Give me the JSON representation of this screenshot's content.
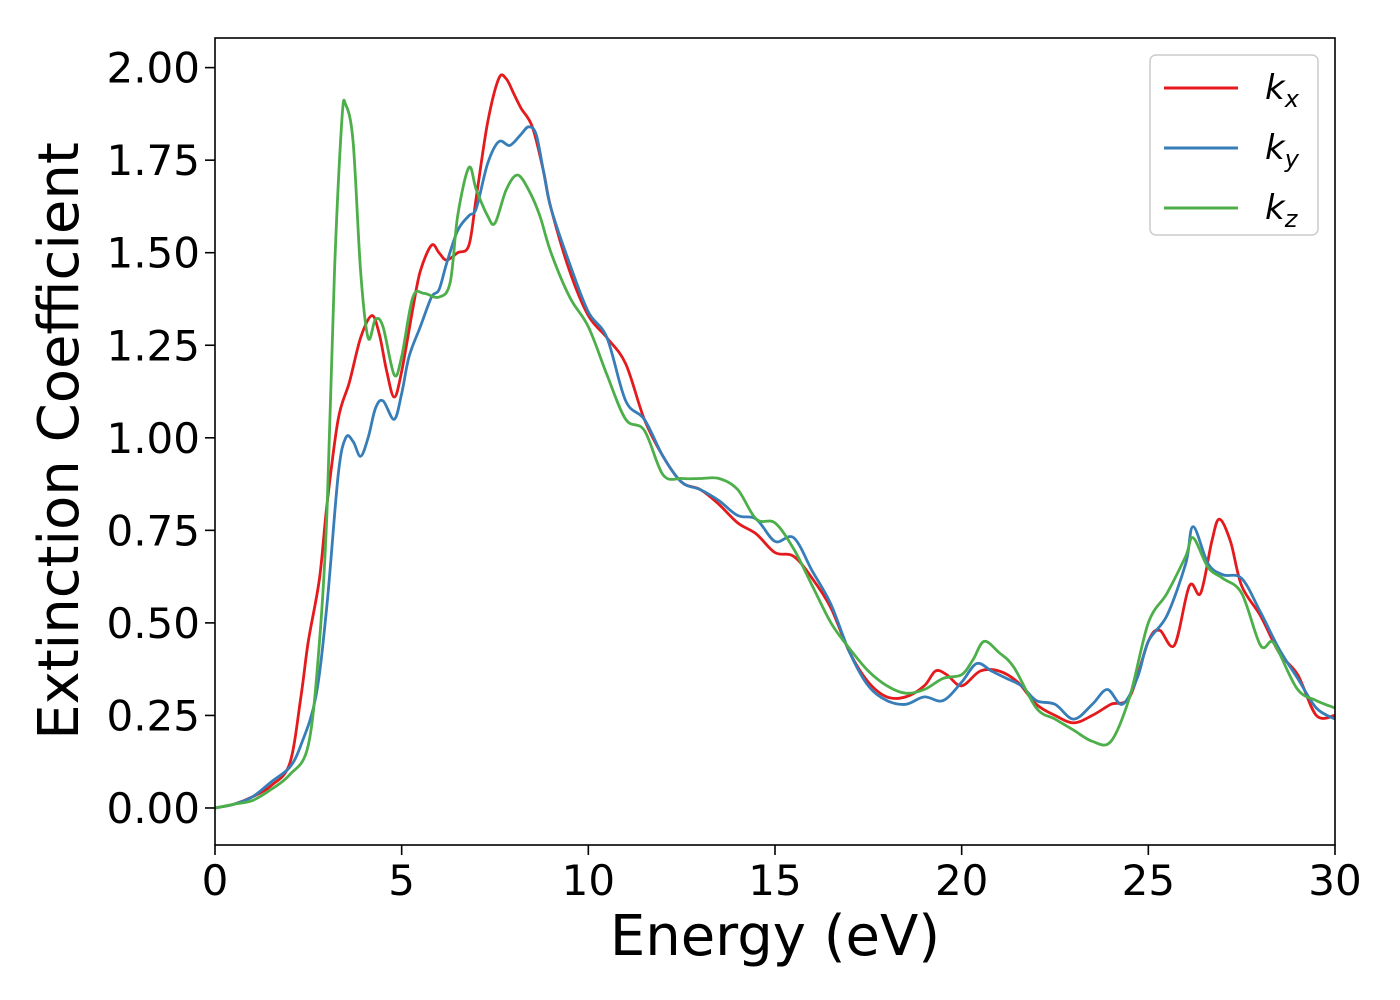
{
  "chart_data": {
    "type": "line",
    "xlabel": "Energy (eV)",
    "ylabel": "Extinction Coefficient",
    "xlim": [
      0,
      30
    ],
    "ylim": [
      -0.1,
      2.08
    ],
    "x_ticks": [
      "0",
      "5",
      "10",
      "15",
      "20",
      "25",
      "30"
    ],
    "y_ticks": [
      "0.00",
      "0.25",
      "0.50",
      "0.75",
      "1.00",
      "1.25",
      "1.50",
      "1.75",
      "2.00"
    ],
    "grid": false,
    "legend_position": "top-right",
    "series": [
      {
        "name": "k",
        "subscript": "x",
        "color": "#e41a1c",
        "points": [
          [
            0,
            0
          ],
          [
            0.5,
            0.01
          ],
          [
            1,
            0.03
          ],
          [
            1.5,
            0.06
          ],
          [
            2,
            0.12
          ],
          [
            2.3,
            0.3
          ],
          [
            2.5,
            0.45
          ],
          [
            2.8,
            0.62
          ],
          [
            3,
            0.82
          ],
          [
            3.3,
            1.05
          ],
          [
            3.6,
            1.15
          ],
          [
            3.9,
            1.27
          ],
          [
            4.2,
            1.33
          ],
          [
            4.4,
            1.28
          ],
          [
            4.6,
            1.18
          ],
          [
            4.8,
            1.11
          ],
          [
            5,
            1.18
          ],
          [
            5.3,
            1.35
          ],
          [
            5.5,
            1.45
          ],
          [
            5.8,
            1.52
          ],
          [
            6,
            1.5
          ],
          [
            6.2,
            1.48
          ],
          [
            6.5,
            1.5
          ],
          [
            6.8,
            1.52
          ],
          [
            7,
            1.65
          ],
          [
            7.3,
            1.85
          ],
          [
            7.6,
            1.97
          ],
          [
            7.8,
            1.97
          ],
          [
            8,
            1.93
          ],
          [
            8.2,
            1.89
          ],
          [
            8.5,
            1.84
          ],
          [
            8.8,
            1.72
          ],
          [
            9,
            1.62
          ],
          [
            9.5,
            1.45
          ],
          [
            10,
            1.33
          ],
          [
            10.5,
            1.27
          ],
          [
            11,
            1.2
          ],
          [
            11.5,
            1.05
          ],
          [
            12,
            0.95
          ],
          [
            12.5,
            0.88
          ],
          [
            13,
            0.86
          ],
          [
            13.5,
            0.82
          ],
          [
            14,
            0.77
          ],
          [
            14.5,
            0.74
          ],
          [
            15,
            0.69
          ],
          [
            15.5,
            0.68
          ],
          [
            16,
            0.62
          ],
          [
            16.5,
            0.54
          ],
          [
            17,
            0.42
          ],
          [
            17.5,
            0.34
          ],
          [
            18,
            0.3
          ],
          [
            18.5,
            0.3
          ],
          [
            19,
            0.33
          ],
          [
            19.3,
            0.37
          ],
          [
            19.6,
            0.36
          ],
          [
            20,
            0.33
          ],
          [
            20.5,
            0.37
          ],
          [
            21,
            0.37
          ],
          [
            21.5,
            0.34
          ],
          [
            22,
            0.28
          ],
          [
            22.5,
            0.25
          ],
          [
            23,
            0.23
          ],
          [
            23.5,
            0.25
          ],
          [
            24,
            0.28
          ],
          [
            24.5,
            0.3
          ],
          [
            25,
            0.45
          ],
          [
            25.3,
            0.48
          ],
          [
            25.7,
            0.44
          ],
          [
            26.1,
            0.6
          ],
          [
            26.4,
            0.58
          ],
          [
            26.7,
            0.72
          ],
          [
            26.9,
            0.78
          ],
          [
            27.2,
            0.72
          ],
          [
            27.5,
            0.6
          ],
          [
            28,
            0.52
          ],
          [
            28.5,
            0.42
          ],
          [
            29,
            0.36
          ],
          [
            29.5,
            0.25
          ],
          [
            30,
            0.25
          ]
        ]
      },
      {
        "name": "k",
        "subscript": "y",
        "color": "#377eb8",
        "points": [
          [
            0,
            0
          ],
          [
            0.5,
            0.01
          ],
          [
            1,
            0.03
          ],
          [
            1.5,
            0.07
          ],
          [
            2,
            0.11
          ],
          [
            2.3,
            0.17
          ],
          [
            2.7,
            0.3
          ],
          [
            3,
            0.55
          ],
          [
            3.3,
            0.9
          ],
          [
            3.5,
            1.0
          ],
          [
            3.7,
            0.99
          ],
          [
            3.9,
            0.95
          ],
          [
            4.1,
            1.0
          ],
          [
            4.3,
            1.08
          ],
          [
            4.5,
            1.1
          ],
          [
            4.8,
            1.05
          ],
          [
            5,
            1.12
          ],
          [
            5.2,
            1.22
          ],
          [
            5.5,
            1.3
          ],
          [
            5.8,
            1.38
          ],
          [
            6,
            1.4
          ],
          [
            6.2,
            1.47
          ],
          [
            6.5,
            1.56
          ],
          [
            6.8,
            1.6
          ],
          [
            7,
            1.62
          ],
          [
            7.3,
            1.74
          ],
          [
            7.6,
            1.8
          ],
          [
            7.9,
            1.79
          ],
          [
            8.2,
            1.82
          ],
          [
            8.4,
            1.84
          ],
          [
            8.6,
            1.82
          ],
          [
            8.8,
            1.72
          ],
          [
            9,
            1.62
          ],
          [
            9.5,
            1.47
          ],
          [
            10,
            1.34
          ],
          [
            10.5,
            1.27
          ],
          [
            11,
            1.1
          ],
          [
            11.5,
            1.05
          ],
          [
            12,
            0.95
          ],
          [
            12.5,
            0.88
          ],
          [
            13,
            0.86
          ],
          [
            13.5,
            0.83
          ],
          [
            14,
            0.79
          ],
          [
            14.5,
            0.78
          ],
          [
            15,
            0.72
          ],
          [
            15.5,
            0.73
          ],
          [
            16,
            0.64
          ],
          [
            16.5,
            0.55
          ],
          [
            17,
            0.42
          ],
          [
            17.5,
            0.33
          ],
          [
            18,
            0.29
          ],
          [
            18.5,
            0.28
          ],
          [
            19,
            0.3
          ],
          [
            19.5,
            0.29
          ],
          [
            20,
            0.34
          ],
          [
            20.4,
            0.39
          ],
          [
            20.8,
            0.37
          ],
          [
            21.2,
            0.35
          ],
          [
            21.6,
            0.33
          ],
          [
            22,
            0.29
          ],
          [
            22.5,
            0.28
          ],
          [
            23,
            0.24
          ],
          [
            23.5,
            0.28
          ],
          [
            23.9,
            0.32
          ],
          [
            24.3,
            0.28
          ],
          [
            24.7,
            0.35
          ],
          [
            25,
            0.45
          ],
          [
            25.5,
            0.52
          ],
          [
            26,
            0.66
          ],
          [
            26.2,
            0.76
          ],
          [
            26.6,
            0.66
          ],
          [
            27,
            0.63
          ],
          [
            27.5,
            0.62
          ],
          [
            28,
            0.53
          ],
          [
            28.5,
            0.43
          ],
          [
            29,
            0.35
          ],
          [
            29.5,
            0.27
          ],
          [
            30,
            0.24
          ]
        ]
      },
      {
        "name": "k",
        "subscript": "z",
        "color": "#4daf4a",
        "points": [
          [
            0,
            0
          ],
          [
            0.5,
            0.01
          ],
          [
            1,
            0.02
          ],
          [
            1.5,
            0.05
          ],
          [
            2,
            0.09
          ],
          [
            2.5,
            0.17
          ],
          [
            2.8,
            0.45
          ],
          [
            3,
            0.8
          ],
          [
            3.2,
            1.45
          ],
          [
            3.4,
            1.86
          ],
          [
            3.5,
            1.9
          ],
          [
            3.7,
            1.8
          ],
          [
            3.9,
            1.45
          ],
          [
            4.1,
            1.27
          ],
          [
            4.3,
            1.32
          ],
          [
            4.5,
            1.3
          ],
          [
            4.8,
            1.17
          ],
          [
            5,
            1.22
          ],
          [
            5.3,
            1.38
          ],
          [
            5.6,
            1.39
          ],
          [
            6,
            1.38
          ],
          [
            6.3,
            1.42
          ],
          [
            6.5,
            1.6
          ],
          [
            6.8,
            1.73
          ],
          [
            7,
            1.67
          ],
          [
            7.3,
            1.6
          ],
          [
            7.5,
            1.58
          ],
          [
            7.8,
            1.67
          ],
          [
            8.1,
            1.71
          ],
          [
            8.4,
            1.67
          ],
          [
            8.7,
            1.6
          ],
          [
            9,
            1.5
          ],
          [
            9.5,
            1.38
          ],
          [
            10,
            1.3
          ],
          [
            10.5,
            1.17
          ],
          [
            11,
            1.05
          ],
          [
            11.5,
            1.02
          ],
          [
            12,
            0.9
          ],
          [
            12.5,
            0.89
          ],
          [
            13,
            0.89
          ],
          [
            13.5,
            0.89
          ],
          [
            14,
            0.86
          ],
          [
            14.5,
            0.78
          ],
          [
            15,
            0.77
          ],
          [
            15.5,
            0.7
          ],
          [
            16,
            0.6
          ],
          [
            16.5,
            0.5
          ],
          [
            17,
            0.43
          ],
          [
            17.5,
            0.37
          ],
          [
            18,
            0.33
          ],
          [
            18.5,
            0.31
          ],
          [
            19,
            0.32
          ],
          [
            19.5,
            0.35
          ],
          [
            20,
            0.36
          ],
          [
            20.3,
            0.4
          ],
          [
            20.6,
            0.45
          ],
          [
            21,
            0.42
          ],
          [
            21.4,
            0.38
          ],
          [
            22,
            0.27
          ],
          [
            22.5,
            0.24
          ],
          [
            23,
            0.21
          ],
          [
            23.5,
            0.18
          ],
          [
            24,
            0.18
          ],
          [
            24.5,
            0.3
          ],
          [
            25,
            0.5
          ],
          [
            25.5,
            0.58
          ],
          [
            26,
            0.68
          ],
          [
            26.2,
            0.73
          ],
          [
            26.6,
            0.65
          ],
          [
            27,
            0.62
          ],
          [
            27.5,
            0.58
          ],
          [
            28,
            0.44
          ],
          [
            28.3,
            0.45
          ],
          [
            28.5,
            0.42
          ],
          [
            29,
            0.32
          ],
          [
            29.5,
            0.29
          ],
          [
            30,
            0.27
          ]
        ]
      }
    ]
  }
}
